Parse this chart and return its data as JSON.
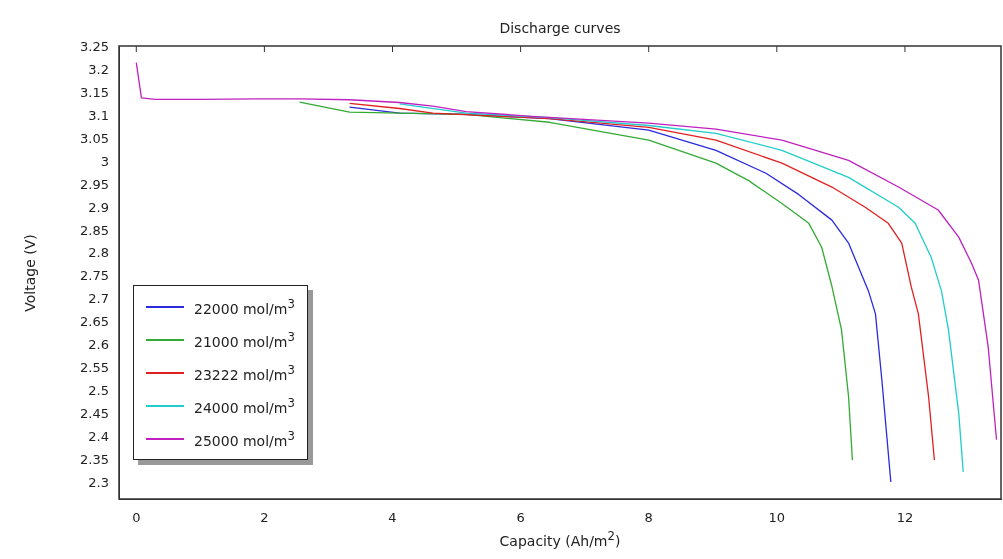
{
  "chart_data": {
    "type": "line",
    "title": "Discharge curves",
    "xlabel": "Capacity (Ah/m$^{2}$)",
    "ylabel": "Voltage (V)",
    "xlim": [
      -0.27,
      13.5
    ],
    "xticks": [
      0,
      2,
      4,
      6,
      8,
      10,
      12
    ],
    "ylim": [
      2.267,
      3.253
    ],
    "yticks": [
      2.3,
      2.35,
      2.4,
      2.45,
      2.5,
      2.55,
      2.6,
      2.65,
      2.7,
      2.75,
      2.8,
      2.85,
      2.9,
      2.95,
      3,
      3.05,
      3.1,
      3.15,
      3.2,
      3.25
    ],
    "grid": false,
    "legend": "bottom left",
    "marker": "none",
    "line_style": "solid",
    "series": [
      {
        "name": "22000 mol/m$^{3}$",
        "color": "#2b2bdd",
        "x": [
          3.33,
          4.11,
          5.15,
          6.45,
          8,
          9.05,
          9.83,
          10.34,
          10.86,
          11.12,
          11.43,
          11.54,
          11.64,
          11.78
        ],
        "values": [
          3.12,
          3.107,
          3.104,
          3.095,
          3.07,
          3.026,
          2.976,
          2.93,
          2.874,
          2.824,
          2.72,
          2.67,
          2.526,
          2.304
        ]
      },
      {
        "name": "21000 mol/m$^{3}$",
        "color": "#33aa33",
        "x": [
          2.55,
          3.33,
          4.11,
          5.15,
          6.45,
          8,
          9.05,
          9.56,
          10.08,
          10.5,
          10.7,
          10.86,
          11.01,
          11.12,
          11.18
        ],
        "values": [
          3.131,
          3.109,
          3.107,
          3.104,
          3.087,
          3.048,
          2.998,
          2.96,
          2.91,
          2.867,
          2.815,
          2.73,
          2.635,
          2.49,
          2.352
        ]
      },
      {
        "name": "23222 mol/m$^{3}$",
        "color": "#e02020",
        "x": [
          3.33,
          4.11,
          4.63,
          6.45,
          8,
          9.05,
          10.08,
          10.86,
          11.38,
          11.74,
          11.95,
          12.1,
          12.21,
          12.37,
          12.46
        ],
        "values": [
          3.128,
          3.117,
          3.107,
          3.095,
          3.076,
          3.048,
          2.998,
          2.946,
          2.902,
          2.867,
          2.824,
          2.728,
          2.67,
          2.489,
          2.352
        ]
      },
      {
        "name": "24000 mol/m$^{3}$",
        "color": "#20cccc",
        "x": [
          4.11,
          5.15,
          6.45,
          8,
          9.05,
          10.08,
          11.12,
          11.9,
          12.16,
          12.41,
          12.57,
          12.68,
          12.84,
          12.91
        ],
        "values": [
          3.127,
          3.107,
          3.097,
          3.08,
          3.063,
          3.026,
          2.967,
          2.902,
          2.867,
          2.793,
          2.72,
          2.635,
          2.454,
          2.326
        ]
      },
      {
        "name": "25000 mol/m$^{3}$",
        "color": "#c020c0",
        "x": [
          0,
          0.08,
          0.3,
          1,
          2,
          2.55,
          3.33,
          4.11,
          4.63,
          5.15,
          6.18,
          8,
          9.05,
          10.08,
          11.12,
          11.9,
          12.52,
          12.84,
          13.04,
          13.15,
          13.3,
          13.43
        ],
        "values": [
          3.217,
          3.14,
          3.137,
          3.137,
          3.138,
          3.138,
          3.136,
          3.13,
          3.122,
          3.11,
          3.1,
          3.085,
          3.072,
          3.048,
          3.004,
          2.946,
          2.896,
          2.837,
          2.78,
          2.743,
          2.598,
          2.396
        ]
      }
    ]
  }
}
